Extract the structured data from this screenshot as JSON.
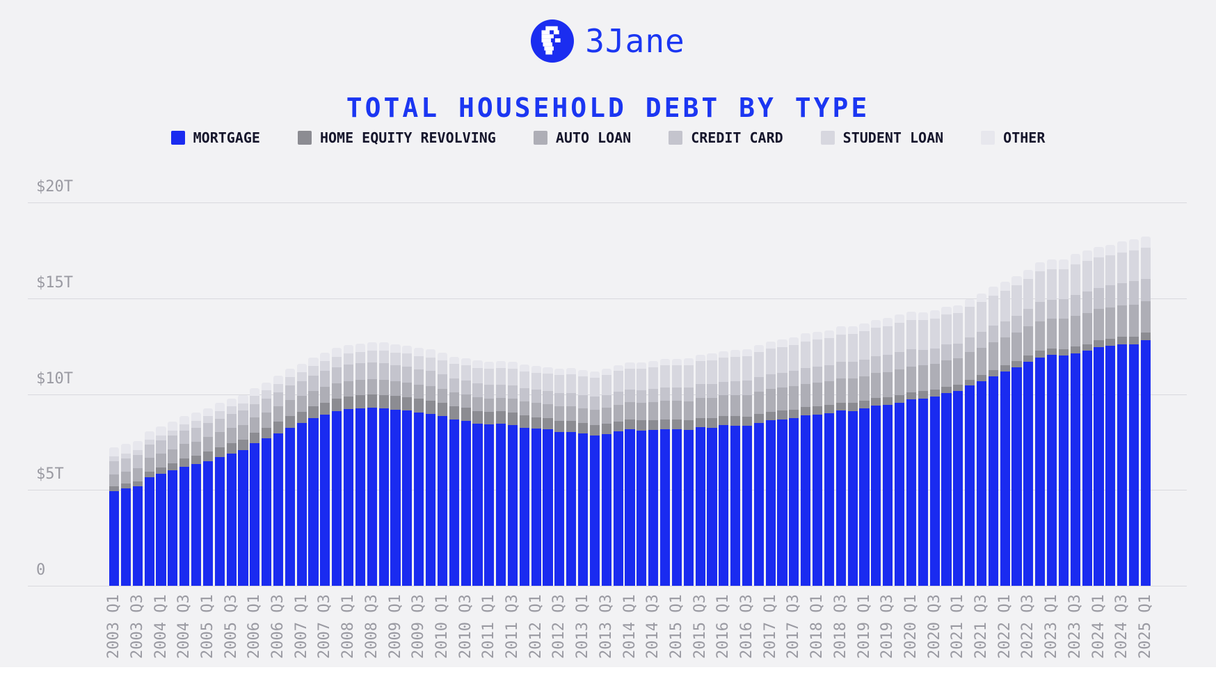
{
  "page": {
    "background": "#f2f2f4",
    "footer_bar_color": "#ffffff"
  },
  "header": {
    "brand": "3Jane",
    "brand_color": "#1b36f2",
    "logo_color": "#1b2df0"
  },
  "title": {
    "text": "TOTAL HOUSEHOLD DEBT BY TYPE",
    "color": "#1b36f2"
  },
  "axes": {
    "y_tick_labels_top_to_bottom": [
      "$20T",
      "$15T",
      "$10T",
      "$5T",
      "0"
    ],
    "x_first_label": "2003 Q1",
    "x_last_label": "2025 Q1",
    "x_label_rotation_deg": -90
  },
  "chart_data": {
    "type": "bar",
    "stacked": true,
    "title": "TOTAL HOUSEHOLD DEBT BY TYPE",
    "unit": "trillions of USD",
    "ylim": [
      0,
      20
    ],
    "y_ticks": [
      0,
      5,
      10,
      15,
      20
    ],
    "y_tick_labels": [
      "0",
      "$5T",
      "$10T",
      "$15T",
      "$20T"
    ],
    "x_tick_every": 2,
    "grid": true,
    "legend_position": "top",
    "x": [
      "2003 Q1",
      "2003 Q2",
      "2003 Q3",
      "2003 Q4",
      "2004 Q1",
      "2004 Q2",
      "2004 Q3",
      "2004 Q4",
      "2005 Q1",
      "2005 Q2",
      "2005 Q3",
      "2005 Q4",
      "2006 Q1",
      "2006 Q2",
      "2006 Q3",
      "2006 Q4",
      "2007 Q1",
      "2007 Q2",
      "2007 Q3",
      "2007 Q4",
      "2008 Q1",
      "2008 Q2",
      "2008 Q3",
      "2008 Q4",
      "2009 Q1",
      "2009 Q2",
      "2009 Q3",
      "2009 Q4",
      "2010 Q1",
      "2010 Q2",
      "2010 Q3",
      "2010 Q4",
      "2011 Q1",
      "2011 Q2",
      "2011 Q3",
      "2011 Q4",
      "2012 Q1",
      "2012 Q2",
      "2012 Q3",
      "2012 Q4",
      "2013 Q1",
      "2013 Q2",
      "2013 Q3",
      "2013 Q4",
      "2014 Q1",
      "2014 Q2",
      "2014 Q3",
      "2014 Q4",
      "2015 Q1",
      "2015 Q2",
      "2015 Q3",
      "2015 Q4",
      "2016 Q1",
      "2016 Q2",
      "2016 Q3",
      "2016 Q4",
      "2017 Q1",
      "2017 Q2",
      "2017 Q3",
      "2017 Q4",
      "2018 Q1",
      "2018 Q2",
      "2018 Q3",
      "2018 Q4",
      "2019 Q1",
      "2019 Q2",
      "2019 Q3",
      "2019 Q4",
      "2020 Q1",
      "2020 Q2",
      "2020 Q3",
      "2020 Q4",
      "2021 Q1",
      "2021 Q2",
      "2021 Q3",
      "2021 Q4",
      "2022 Q1",
      "2022 Q2",
      "2022 Q3",
      "2022 Q4",
      "2023 Q1",
      "2023 Q2",
      "2023 Q3",
      "2023 Q4",
      "2024 Q1",
      "2024 Q2",
      "2024 Q3",
      "2024 Q4",
      "2025 Q1"
    ],
    "series": [
      {
        "name": "MORTGAGE",
        "color": "#1a2bf0",
        "values": [
          4.94,
          5.08,
          5.18,
          5.66,
          5.84,
          6.02,
          6.21,
          6.36,
          6.51,
          6.7,
          6.9,
          7.07,
          7.43,
          7.68,
          7.95,
          8.24,
          8.48,
          8.74,
          8.93,
          9.1,
          9.21,
          9.27,
          9.29,
          9.26,
          9.19,
          9.14,
          9.04,
          8.95,
          8.85,
          8.69,
          8.61,
          8.45,
          8.41,
          8.44,
          8.4,
          8.25,
          8.19,
          8.15,
          8.03,
          8.03,
          7.93,
          7.84,
          7.9,
          8.05,
          8.16,
          8.1,
          8.13,
          8.17,
          8.17,
          8.12,
          8.26,
          8.25,
          8.37,
          8.36,
          8.35,
          8.48,
          8.63,
          8.69,
          8.74,
          8.88,
          8.94,
          9.0,
          9.14,
          9.12,
          9.24,
          9.41,
          9.44,
          9.56,
          9.71,
          9.78,
          9.86,
          10.04,
          10.16,
          10.44,
          10.67,
          10.93,
          11.18,
          11.39,
          11.67,
          11.92,
          12.04,
          12.01,
          12.14,
          12.25,
          12.44,
          12.52,
          12.59,
          12.61,
          12.8
        ]
      },
      {
        "name": "HOME EQUITY REVOLVING",
        "color": "#8c8c92",
        "values": [
          0.24,
          0.26,
          0.27,
          0.3,
          0.33,
          0.37,
          0.43,
          0.44,
          0.5,
          0.52,
          0.54,
          0.54,
          0.56,
          0.57,
          0.6,
          0.62,
          0.61,
          0.63,
          0.63,
          0.65,
          0.67,
          0.68,
          0.69,
          0.7,
          0.71,
          0.71,
          0.71,
          0.71,
          0.71,
          0.69,
          0.67,
          0.67,
          0.66,
          0.66,
          0.65,
          0.63,
          0.61,
          0.59,
          0.58,
          0.56,
          0.55,
          0.54,
          0.54,
          0.53,
          0.53,
          0.53,
          0.51,
          0.51,
          0.51,
          0.5,
          0.49,
          0.49,
          0.49,
          0.48,
          0.47,
          0.47,
          0.46,
          0.45,
          0.45,
          0.44,
          0.44,
          0.43,
          0.42,
          0.41,
          0.41,
          0.4,
          0.4,
          0.39,
          0.39,
          0.38,
          0.36,
          0.35,
          0.33,
          0.32,
          0.32,
          0.32,
          0.32,
          0.32,
          0.33,
          0.34,
          0.34,
          0.34,
          0.35,
          0.36,
          0.37,
          0.38,
          0.39,
          0.4,
          0.4
        ]
      },
      {
        "name": "AUTO LOAN",
        "color": "#aeaeb6",
        "values": [
          0.64,
          0.62,
          0.68,
          0.7,
          0.72,
          0.74,
          0.75,
          0.73,
          0.76,
          0.79,
          0.81,
          0.79,
          0.78,
          0.79,
          0.8,
          0.82,
          0.81,
          0.81,
          0.82,
          0.81,
          0.8,
          0.81,
          0.81,
          0.79,
          0.76,
          0.75,
          0.74,
          0.74,
          0.72,
          0.7,
          0.71,
          0.71,
          0.71,
          0.71,
          0.72,
          0.73,
          0.74,
          0.75,
          0.77,
          0.78,
          0.79,
          0.81,
          0.85,
          0.86,
          0.88,
          0.91,
          0.94,
          0.96,
          0.97,
          1.01,
          1.05,
          1.06,
          1.07,
          1.1,
          1.14,
          1.16,
          1.17,
          1.19,
          1.21,
          1.22,
          1.23,
          1.24,
          1.27,
          1.27,
          1.28,
          1.3,
          1.32,
          1.33,
          1.35,
          1.34,
          1.36,
          1.37,
          1.38,
          1.42,
          1.44,
          1.46,
          1.47,
          1.5,
          1.52,
          1.55,
          1.56,
          1.58,
          1.6,
          1.61,
          1.62,
          1.63,
          1.64,
          1.66,
          1.64
        ]
      },
      {
        "name": "CREDIT CARD",
        "color": "#c4c4cd",
        "values": [
          0.69,
          0.69,
          0.69,
          0.7,
          0.7,
          0.7,
          0.71,
          0.72,
          0.71,
          0.71,
          0.72,
          0.73,
          0.72,
          0.73,
          0.74,
          0.76,
          0.77,
          0.79,
          0.82,
          0.84,
          0.85,
          0.85,
          0.87,
          0.87,
          0.84,
          0.83,
          0.81,
          0.81,
          0.76,
          0.74,
          0.73,
          0.73,
          0.7,
          0.69,
          0.69,
          0.7,
          0.68,
          0.67,
          0.67,
          0.68,
          0.66,
          0.67,
          0.67,
          0.68,
          0.66,
          0.67,
          0.68,
          0.7,
          0.68,
          0.7,
          0.71,
          0.73,
          0.71,
          0.73,
          0.75,
          0.78,
          0.76,
          0.78,
          0.81,
          0.83,
          0.82,
          0.83,
          0.84,
          0.87,
          0.85,
          0.87,
          0.88,
          0.93,
          0.89,
          0.82,
          0.81,
          0.82,
          0.77,
          0.79,
          0.8,
          0.86,
          0.84,
          0.89,
          0.93,
          0.99,
          0.99,
          1.03,
          1.08,
          1.13,
          1.12,
          1.14,
          1.17,
          1.21,
          1.18
        ]
      },
      {
        "name": "STUDENT LOAN",
        "color": "#d7d7df",
        "values": [
          0.24,
          0.25,
          0.25,
          0.25,
          0.26,
          0.28,
          0.31,
          0.35,
          0.36,
          0.38,
          0.39,
          0.39,
          0.41,
          0.43,
          0.45,
          0.45,
          0.48,
          0.5,
          0.53,
          0.55,
          0.58,
          0.59,
          0.61,
          0.64,
          0.66,
          0.68,
          0.69,
          0.71,
          0.73,
          0.75,
          0.78,
          0.81,
          0.84,
          0.85,
          0.87,
          0.87,
          0.9,
          0.91,
          0.94,
          0.97,
          0.99,
          1.0,
          1.03,
          1.08,
          1.11,
          1.12,
          1.13,
          1.16,
          1.19,
          1.19,
          1.2,
          1.23,
          1.26,
          1.26,
          1.28,
          1.31,
          1.34,
          1.34,
          1.36,
          1.38,
          1.41,
          1.41,
          1.44,
          1.46,
          1.49,
          1.48,
          1.5,
          1.51,
          1.54,
          1.54,
          1.55,
          1.56,
          1.58,
          1.57,
          1.58,
          1.58,
          1.59,
          1.59,
          1.57,
          1.6,
          1.6,
          1.57,
          1.6,
          1.6,
          1.6,
          1.58,
          1.61,
          1.62,
          1.63
        ]
      },
      {
        "name": "OTHER",
        "color": "#e7e7ed",
        "values": [
          0.48,
          0.49,
          0.48,
          0.45,
          0.45,
          0.44,
          0.43,
          0.42,
          0.42,
          0.43,
          0.42,
          0.41,
          0.4,
          0.41,
          0.42,
          0.43,
          0.42,
          0.43,
          0.44,
          0.45,
          0.44,
          0.44,
          0.43,
          0.43,
          0.42,
          0.41,
          0.41,
          0.41,
          0.39,
          0.38,
          0.38,
          0.38,
          0.37,
          0.36,
          0.35,
          0.35,
          0.34,
          0.33,
          0.33,
          0.33,
          0.33,
          0.32,
          0.32,
          0.32,
          0.32,
          0.33,
          0.33,
          0.33,
          0.33,
          0.34,
          0.34,
          0.35,
          0.35,
          0.36,
          0.36,
          0.37,
          0.38,
          0.39,
          0.4,
          0.41,
          0.4,
          0.41,
          0.42,
          0.41,
          0.41,
          0.42,
          0.43,
          0.43,
          0.42,
          0.42,
          0.42,
          0.42,
          0.42,
          0.43,
          0.43,
          0.44,
          0.45,
          0.46,
          0.47,
          0.49,
          0.5,
          0.51,
          0.53,
          0.54,
          0.54,
          0.54,
          0.55,
          0.56,
          0.56
        ]
      }
    ]
  }
}
